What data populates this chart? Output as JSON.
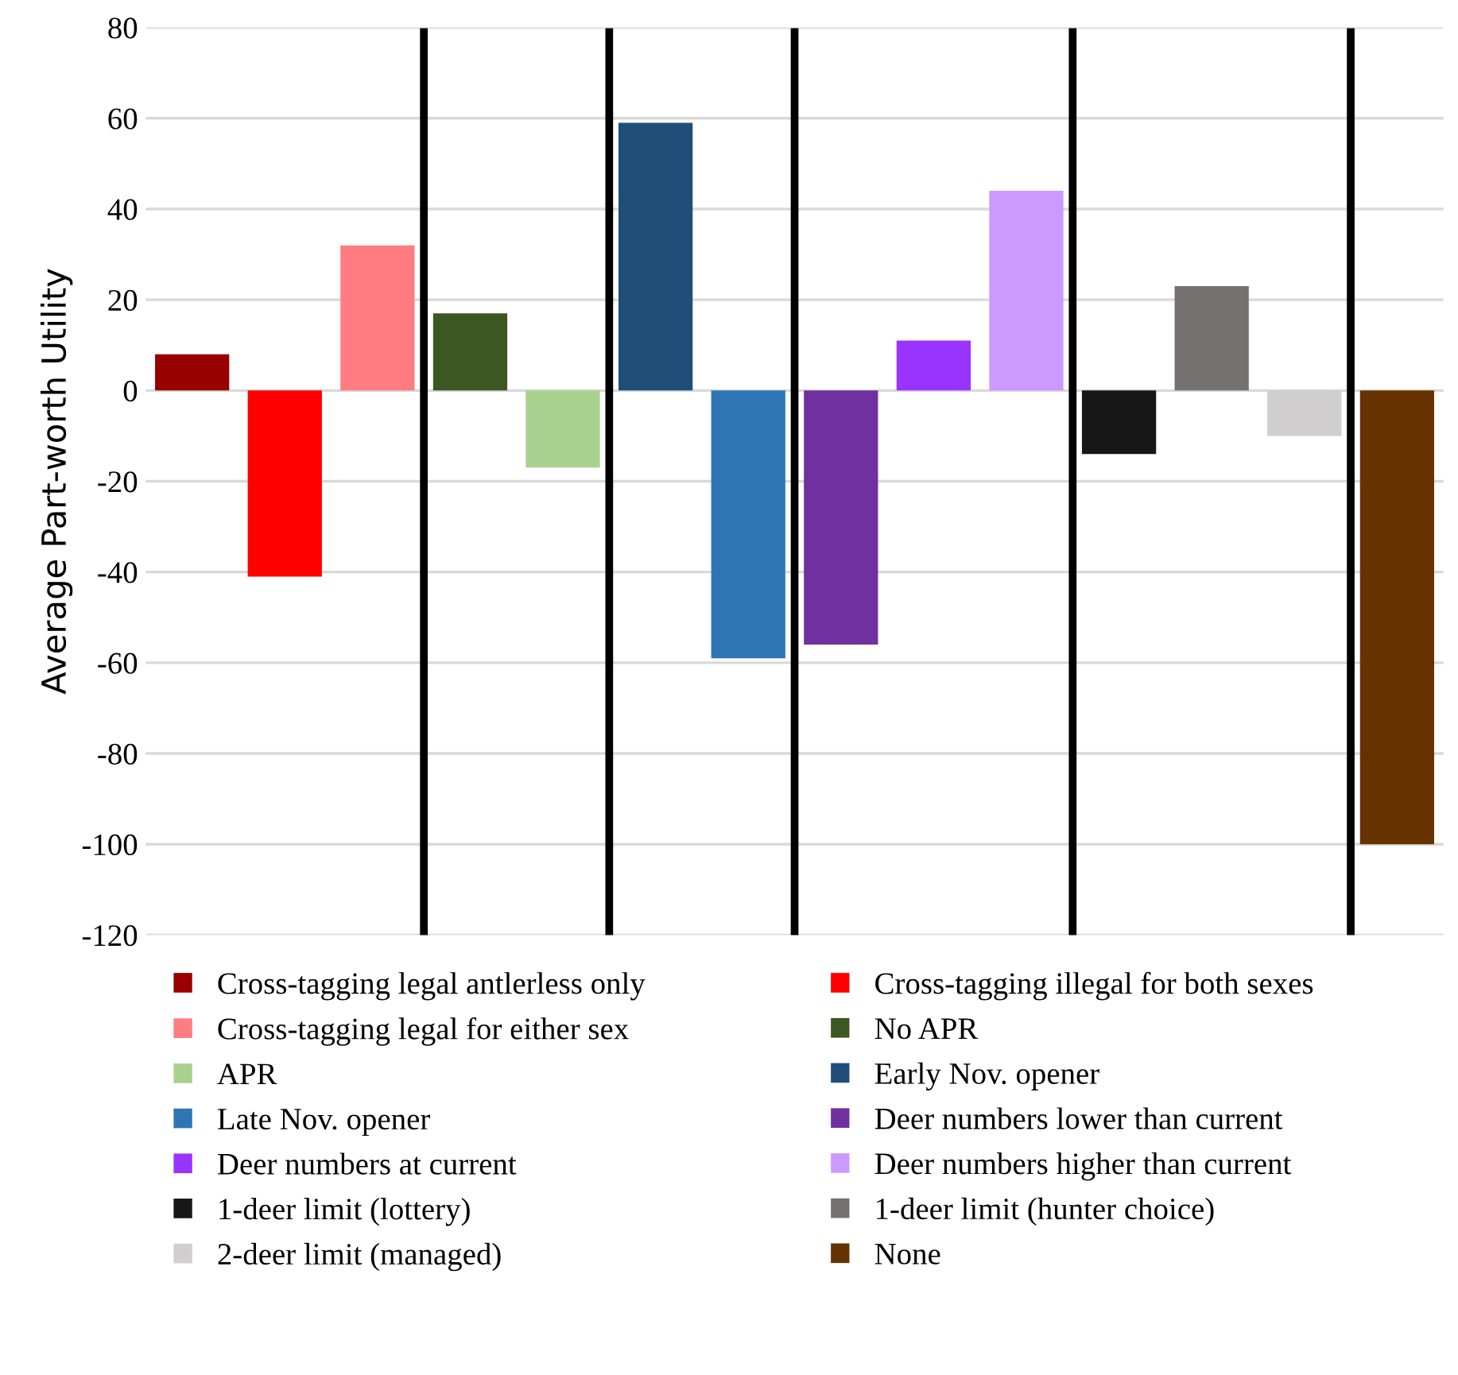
{
  "chart_data": {
    "type": "bar",
    "ylabel": "Average Part-worth Utility",
    "categories": [
      null,
      null,
      null,
      null,
      null,
      null,
      null,
      null,
      null,
      null,
      null,
      null,
      null,
      null
    ],
    "series": [
      {
        "name": "Cross-tagging legal antlerless only",
        "color": "#990000",
        "values": [
          8,
          null,
          null,
          null,
          null,
          null,
          null,
          null,
          null,
          null,
          null,
          null,
          null,
          null
        ]
      },
      {
        "name": "Cross-tagging illegal for both sexes",
        "color": "#ff0000",
        "values": [
          null,
          -41,
          null,
          null,
          null,
          null,
          null,
          null,
          null,
          null,
          null,
          null,
          null,
          null
        ]
      },
      {
        "name": "Cross-tagging legal for either sex",
        "color": "#ff7c80",
        "values": [
          null,
          null,
          32,
          null,
          null,
          null,
          null,
          null,
          null,
          null,
          null,
          null,
          null,
          null
        ]
      },
      {
        "name": "No APR",
        "color": "#3b5722",
        "values": [
          null,
          null,
          null,
          17,
          null,
          null,
          null,
          null,
          null,
          null,
          null,
          null,
          null,
          null
        ]
      },
      {
        "name": "APR",
        "color": "#a9d18e",
        "values": [
          null,
          null,
          null,
          null,
          -17,
          null,
          null,
          null,
          null,
          null,
          null,
          null,
          null,
          null
        ]
      },
      {
        "name": "Early Nov. opener",
        "color": "#1f4e79",
        "values": [
          null,
          null,
          null,
          null,
          null,
          59,
          null,
          null,
          null,
          null,
          null,
          null,
          null,
          null
        ]
      },
      {
        "name": "Late Nov. opener",
        "color": "#2e75b6",
        "values": [
          null,
          null,
          null,
          null,
          null,
          null,
          -59,
          null,
          null,
          null,
          null,
          null,
          null,
          null
        ]
      },
      {
        "name": "Deer numbers lower than current",
        "color": "#7030a0",
        "values": [
          null,
          null,
          null,
          null,
          null,
          null,
          null,
          -56,
          null,
          null,
          null,
          null,
          null,
          null
        ]
      },
      {
        "name": "Deer numbers at current",
        "color": "#9933ff",
        "values": [
          null,
          null,
          null,
          null,
          null,
          null,
          null,
          null,
          11,
          null,
          null,
          null,
          null,
          null
        ]
      },
      {
        "name": "Deer numbers higher than current",
        "color": "#cc99ff",
        "values": [
          null,
          null,
          null,
          null,
          null,
          null,
          null,
          null,
          null,
          44,
          null,
          null,
          null,
          null
        ]
      },
      {
        "name": "1-deer limit (lottery)",
        "color": "#171717",
        "values": [
          null,
          null,
          null,
          null,
          null,
          null,
          null,
          null,
          null,
          null,
          -14,
          null,
          null,
          null
        ]
      },
      {
        "name": "1-deer limit (hunter choice)",
        "color": "#767171",
        "values": [
          null,
          null,
          null,
          null,
          null,
          null,
          null,
          null,
          null,
          null,
          null,
          23,
          null,
          null
        ]
      },
      {
        "name": "2-deer limit (managed)",
        "color": "#d0cece",
        "values": [
          null,
          null,
          null,
          null,
          null,
          null,
          null,
          null,
          null,
          null,
          null,
          null,
          -10,
          null
        ]
      },
      {
        "name": "None",
        "color": "#663300",
        "values": [
          null,
          null,
          null,
          null,
          null,
          null,
          null,
          null,
          null,
          null,
          null,
          null,
          null,
          -100
        ]
      }
    ],
    "ylim": [
      -120,
      80
    ],
    "yticks": [
      -120,
      -100,
      -80,
      -60,
      -40,
      -20,
      0,
      20,
      40,
      60,
      80
    ],
    "grid": "y",
    "legend": "bottom"
  }
}
